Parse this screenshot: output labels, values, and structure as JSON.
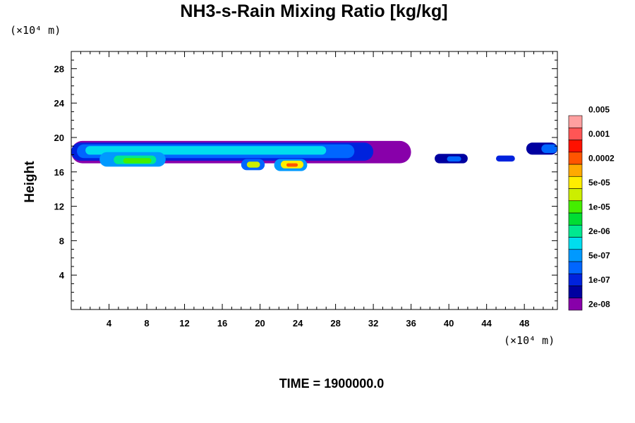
{
  "chart_data": {
    "type": "heatmap",
    "title": "NH3-s-Rain Mixing Ratio [kg/kg]",
    "ylabel": "Height",
    "x_unit": "(×10⁴ m)",
    "y_unit": "(×10⁴ m)",
    "xlim": [
      0,
      51.5
    ],
    "ylim": [
      0,
      30
    ],
    "x_ticks": [
      4,
      8,
      12,
      16,
      20,
      24,
      28,
      32,
      36,
      40,
      44,
      48
    ],
    "y_ticks": [
      4,
      8,
      12,
      16,
      20,
      24,
      28
    ],
    "time_label": "TIME = 1900000.0",
    "colorbar": {
      "colors": [
        "#8800aa",
        "#0000a0",
        "#0022dd",
        "#0066ff",
        "#0099ff",
        "#00ddee",
        "#00e890",
        "#00dd33",
        "#44ee00",
        "#ccee00",
        "#ffee00",
        "#ffaa00",
        "#ff5500",
        "#ff1100",
        "#ff5555",
        "#ffa0a0"
      ],
      "labels": [
        "2e-08",
        "1e-07",
        "5e-07",
        "2e-06",
        "1e-05",
        "5e-05",
        "0.0002",
        "0.001",
        "0.005"
      ]
    },
    "regions": [
      {
        "x": [
          0,
          36
        ],
        "y": [
          17.0,
          19.6
        ],
        "level": 0
      },
      {
        "x": [
          0,
          32
        ],
        "y": [
          17.3,
          19.4
        ],
        "level": 2
      },
      {
        "x": [
          0.6,
          30
        ],
        "y": [
          17.6,
          19.2
        ],
        "level": 3
      },
      {
        "x": [
          1.5,
          27
        ],
        "y": [
          18.0,
          19.0
        ],
        "level": 5
      },
      {
        "x": [
          3,
          10
        ],
        "y": [
          16.6,
          18.3
        ],
        "level": 4
      },
      {
        "x": [
          4.5,
          9
        ],
        "y": [
          16.9,
          17.9
        ],
        "level": 6
      },
      {
        "x": [
          5.5,
          8.5
        ],
        "y": [
          17.0,
          17.6
        ],
        "level": 8
      },
      {
        "x": [
          18,
          20.5
        ],
        "y": [
          16.2,
          17.5
        ],
        "level": 3
      },
      {
        "x": [
          18.6,
          20
        ],
        "y": [
          16.5,
          17.2
        ],
        "level": 9
      },
      {
        "x": [
          21.5,
          25
        ],
        "y": [
          16.1,
          17.5
        ],
        "level": 4
      },
      {
        "x": [
          22.2,
          24.6
        ],
        "y": [
          16.4,
          17.3
        ],
        "level": 10
      },
      {
        "x": [
          22.8,
          24
        ],
        "y": [
          16.6,
          17.0
        ],
        "level": 12
      },
      {
        "x": [
          38.5,
          42
        ],
        "y": [
          17.0,
          18.1
        ],
        "level": 1
      },
      {
        "x": [
          39.8,
          41.3
        ],
        "y": [
          17.2,
          17.8
        ],
        "level": 3
      },
      {
        "x": [
          45,
          47
        ],
        "y": [
          17.2,
          17.9
        ],
        "level": 2
      },
      {
        "x": [
          48.2,
          51.5
        ],
        "y": [
          18.0,
          19.4
        ],
        "level": 1
      },
      {
        "x": [
          49.8,
          51.5
        ],
        "y": [
          18.2,
          19.2
        ],
        "level": 3
      }
    ]
  }
}
